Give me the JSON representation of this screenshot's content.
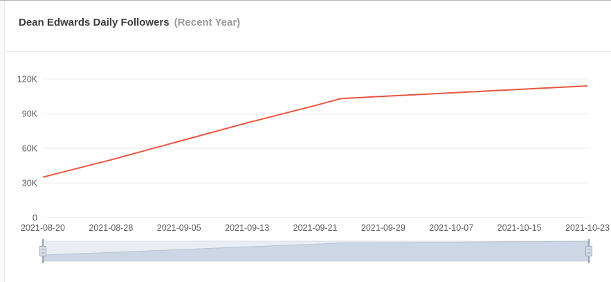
{
  "header": {
    "title": "Dean Edwards Daily Followers",
    "subtitle": "(Recent Year)"
  },
  "chart_data": {
    "type": "line",
    "title": "Dean Edwards Daily Followers",
    "subtitle": "(Recent Year)",
    "ylim": [
      0,
      120000
    ],
    "grid": true,
    "legend": "none",
    "y_ticks": [
      {
        "label": "0",
        "value": 0
      },
      {
        "label": "30K",
        "value": 30000
      },
      {
        "label": "60K",
        "value": 60000
      },
      {
        "label": "90K",
        "value": 90000
      },
      {
        "label": "120K",
        "value": 120000
      }
    ],
    "x_ticks": [
      "2021-08-20",
      "2021-08-28",
      "2021-09-05",
      "2021-09-13",
      "2021-09-21",
      "2021-09-29",
      "2021-10-07",
      "2021-10-15",
      "2021-10-23"
    ],
    "series": [
      {
        "name": "Daily Followers",
        "color": "#e8543e",
        "points": [
          {
            "date": "2021-08-20",
            "value": 35000
          },
          {
            "date": "2021-08-28",
            "value": 50000
          },
          {
            "date": "2021-09-05",
            "value": 66000
          },
          {
            "date": "2021-09-13",
            "value": 82000
          },
          {
            "date": "2021-09-21",
            "value": 97000
          },
          {
            "date": "2021-09-24",
            "value": 103000
          },
          {
            "date": "2021-09-29",
            "value": 105000
          },
          {
            "date": "2021-10-07",
            "value": 108000
          },
          {
            "date": "2021-10-15",
            "value": 111000
          },
          {
            "date": "2021-10-23",
            "value": 114000
          }
        ]
      }
    ],
    "navigator": {
      "present": true,
      "track_color": "#e9edf4",
      "track_border": "#dce1ea",
      "area_fill": "#cdd6e4",
      "area_line": "#b6c2d2",
      "handle_color": "#9aa7b8",
      "handle_fill": "#d5dce5"
    },
    "axis_colors": {
      "gridline": "#e9e9e9",
      "tick_label": "#5c5c5c"
    }
  }
}
